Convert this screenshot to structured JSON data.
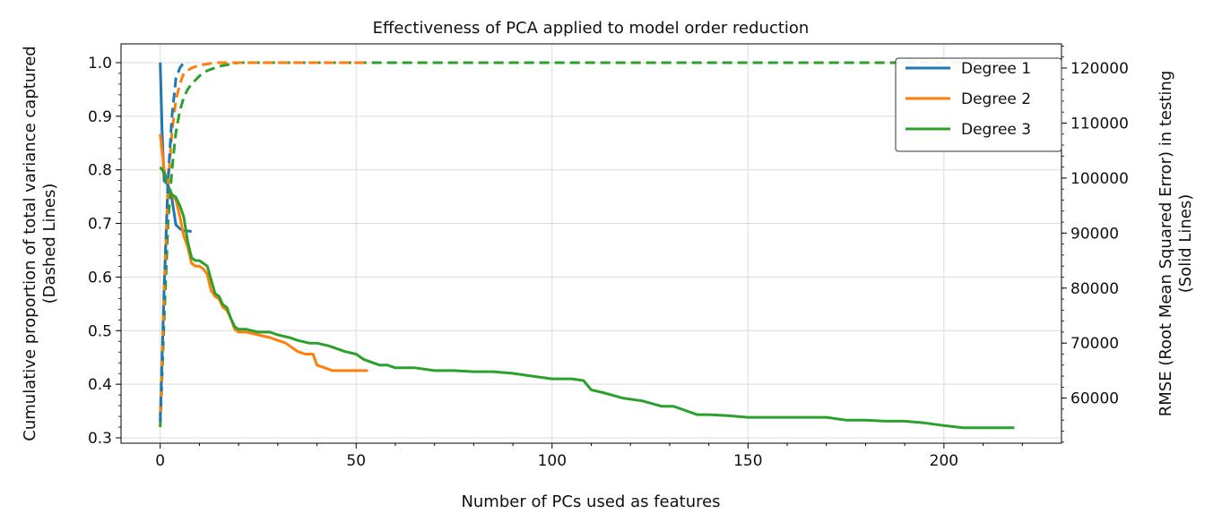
{
  "chart_data": {
    "type": "line",
    "title": "Effectiveness of PCA applied to model order reduction",
    "xlabel": "Number of PCs used as features",
    "ylabel_left": [
      "Cumulative proportion of total variance captured",
      "(Dashed Lines)"
    ],
    "ylabel_right": [
      "RMSE (Root Mean Squared Error) in testing",
      "(Solid Lines)"
    ],
    "xlim": [
      -10,
      230
    ],
    "ylim_left": [
      0.29,
      1.035
    ],
    "ylim_right": [
      51800,
      124400
    ],
    "x_ticks": [
      0,
      50,
      100,
      150,
      200
    ],
    "y_ticks_left": [
      0.3,
      0.4,
      0.5,
      0.6,
      0.7,
      0.8,
      0.9,
      1.0
    ],
    "y_ticks_right": [
      60000,
      70000,
      80000,
      90000,
      100000,
      110000,
      120000
    ],
    "grid": true,
    "legend_position": "top-right",
    "series": [
      {
        "name": "Degree 1",
        "color": "#1f77b4",
        "variance": {
          "x": [
            0,
            1,
            2,
            3,
            4,
            5,
            6,
            7
          ],
          "y": [
            0.33,
            0.58,
            0.78,
            0.9,
            0.97,
            0.99,
            1.0,
            1.0
          ]
        },
        "rmse": {
          "x": [
            0,
            0.5,
            1,
            2,
            3,
            4,
            5,
            6,
            7,
            8
          ],
          "y": [
            121000,
            108000,
            99500,
            98800,
            96200,
            91500,
            90800,
            90400,
            90400,
            90300
          ]
        }
      },
      {
        "name": "Degree 2",
        "color": "#ff7f0e",
        "variance": {
          "x": [
            0,
            1,
            2,
            3,
            4,
            5,
            6,
            8,
            10,
            14,
            20,
            30,
            52
          ],
          "y": [
            0.34,
            0.58,
            0.77,
            0.87,
            0.93,
            0.96,
            0.98,
            0.99,
            0.995,
            1.0,
            1.0,
            1.0,
            1.0
          ]
        },
        "rmse": {
          "x": [
            0,
            1,
            2,
            3,
            4,
            5,
            6,
            7,
            8,
            9,
            10,
            11,
            12,
            13,
            14,
            15,
            16,
            17,
            18,
            19,
            20,
            21,
            22,
            25,
            28,
            30,
            32,
            35,
            37,
            39,
            40,
            42,
            44,
            46,
            48,
            50,
            53
          ],
          "y": [
            108000,
            101500,
            98500,
            97000,
            96000,
            93000,
            89500,
            87500,
            84500,
            84000,
            84000,
            83500,
            82500,
            79500,
            78500,
            78000,
            76500,
            76000,
            74500,
            72500,
            72000,
            72000,
            72000,
            71500,
            71000,
            70500,
            70000,
            68500,
            68000,
            68000,
            66000,
            65500,
            65000,
            65000,
            65000,
            65000,
            65000
          ]
        }
      },
      {
        "name": "Degree 3",
        "color": "#2ca02c",
        "variance": {
          "x": [
            0,
            1,
            2,
            3,
            4,
            5,
            6,
            7,
            8,
            10,
            12,
            15,
            20,
            25,
            30,
            218
          ],
          "y": [
            0.32,
            0.52,
            0.7,
            0.8,
            0.87,
            0.91,
            0.935,
            0.95,
            0.96,
            0.975,
            0.985,
            0.993,
            1.0,
            1.0,
            1.0,
            1.0
          ]
        },
        "rmse": {
          "x": [
            0,
            1,
            2,
            3,
            4,
            5,
            6,
            7,
            8,
            9,
            10,
            11,
            12,
            13,
            14,
            15,
            16,
            17,
            18,
            19,
            20,
            22,
            25,
            28,
            30,
            33,
            35,
            38,
            40,
            43,
            45,
            47,
            50,
            52,
            54,
            56,
            58,
            60,
            65,
            70,
            75,
            80,
            85,
            90,
            95,
            100,
            105,
            108,
            110,
            113,
            118,
            123,
            128,
            131,
            135,
            137,
            140,
            145,
            150,
            155,
            160,
            165,
            170,
            175,
            180,
            185,
            190,
            195,
            200,
            205,
            210,
            215,
            218
          ],
          "y": [
            102000,
            101000,
            98500,
            97000,
            96500,
            95000,
            93000,
            88500,
            85500,
            85000,
            85000,
            84500,
            84000,
            81500,
            79000,
            78500,
            77000,
            76500,
            74500,
            73000,
            72500,
            72500,
            72000,
            72000,
            71500,
            71000,
            70500,
            70000,
            70000,
            69500,
            69000,
            68500,
            68000,
            67000,
            66500,
            66000,
            66000,
            65500,
            65500,
            65000,
            65000,
            64800,
            64800,
            64500,
            64000,
            63500,
            63500,
            63200,
            61500,
            61000,
            60000,
            59500,
            58500,
            58500,
            57500,
            57000,
            57000,
            56800,
            56500,
            56500,
            56500,
            56500,
            56500,
            56000,
            56000,
            55800,
            55800,
            55500,
            55000,
            54600,
            54600,
            54600,
            54600
          ]
        }
      }
    ]
  }
}
